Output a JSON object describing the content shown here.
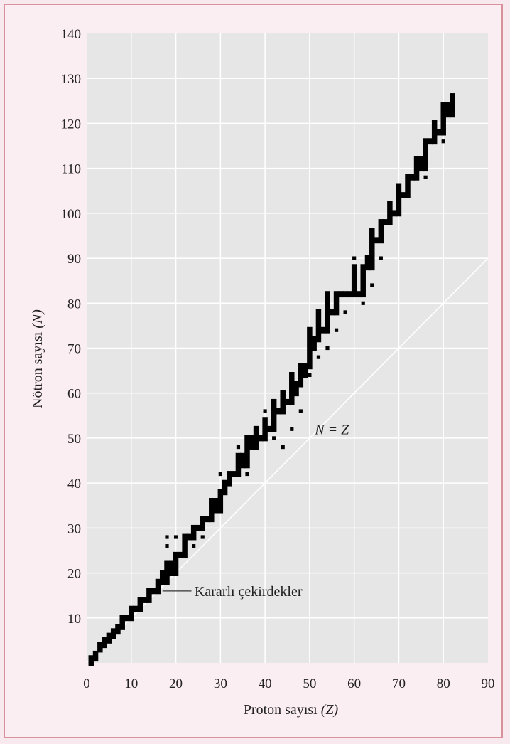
{
  "chart_data": {
    "type": "scatter",
    "xlabel": {
      "text": "Proton sayısı ",
      "symbol": "(Z)"
    },
    "ylabel": {
      "text": "Nötron sayısı ",
      "symbol": "(N)"
    },
    "xlim": [
      0,
      90
    ],
    "ylim": [
      0,
      140
    ],
    "xticks": [
      0,
      10,
      20,
      30,
      40,
      50,
      60,
      70,
      80,
      90
    ],
    "yticks": [
      10,
      20,
      30,
      40,
      50,
      60,
      70,
      80,
      90,
      100,
      110,
      120,
      130,
      140
    ],
    "grid": true,
    "reference_line": {
      "label": "N = Z",
      "x": [
        0,
        90
      ],
      "y": [
        0,
        90
      ]
    },
    "annotation": {
      "text": "Kararlı çekirdekler",
      "points_to": {
        "x": 16,
        "y": 16
      }
    },
    "stable_nuclei_band": [
      [
        1,
        0,
        1
      ],
      [
        2,
        1,
        2
      ],
      [
        3,
        3,
        4
      ],
      [
        4,
        4,
        5
      ],
      [
        5,
        5,
        6
      ],
      [
        6,
        6,
        7
      ],
      [
        7,
        7,
        8
      ],
      [
        8,
        8,
        10
      ],
      [
        9,
        10,
        10
      ],
      [
        10,
        10,
        12
      ],
      [
        11,
        12,
        12
      ],
      [
        12,
        12,
        14
      ],
      [
        13,
        14,
        14
      ],
      [
        14,
        14,
        16
      ],
      [
        15,
        16,
        16
      ],
      [
        16,
        16,
        18
      ],
      [
        17,
        18,
        20
      ],
      [
        18,
        18,
        22
      ],
      [
        19,
        20,
        22
      ],
      [
        20,
        20,
        24
      ],
      [
        21,
        24,
        24
      ],
      [
        22,
        24,
        28
      ],
      [
        23,
        28,
        28
      ],
      [
        24,
        28,
        30
      ],
      [
        25,
        30,
        30
      ],
      [
        26,
        30,
        32
      ],
      [
        27,
        32,
        32
      ],
      [
        28,
        32,
        36
      ],
      [
        29,
        34,
        36
      ],
      [
        30,
        34,
        38
      ],
      [
        31,
        38,
        40
      ],
      [
        32,
        40,
        42
      ],
      [
        33,
        42,
        42
      ],
      [
        34,
        42,
        46
      ],
      [
        35,
        44,
        46
      ],
      [
        36,
        44,
        50
      ],
      [
        37,
        48,
        50
      ],
      [
        38,
        48,
        52
      ],
      [
        39,
        50,
        50
      ],
      [
        40,
        50,
        54
      ],
      [
        41,
        52,
        52
      ],
      [
        42,
        52,
        58
      ],
      [
        43,
        56,
        56
      ],
      [
        44,
        56,
        60
      ],
      [
        45,
        58,
        58
      ],
      [
        46,
        58,
        64
      ],
      [
        47,
        60,
        62
      ],
      [
        48,
        62,
        66
      ],
      [
        49,
        64,
        66
      ],
      [
        50,
        66,
        74
      ],
      [
        51,
        70,
        72
      ],
      [
        52,
        72,
        78
      ],
      [
        53,
        74,
        74
      ],
      [
        54,
        74,
        82
      ],
      [
        55,
        78,
        78
      ],
      [
        56,
        78,
        82
      ],
      [
        57,
        82,
        82
      ],
      [
        58,
        82,
        82
      ],
      [
        59,
        82,
        82
      ],
      [
        60,
        82,
        88
      ],
      [
        61,
        82,
        82
      ],
      [
        62,
        82,
        88
      ],
      [
        63,
        88,
        90
      ],
      [
        64,
        88,
        96
      ],
      [
        65,
        94,
        94
      ],
      [
        66,
        94,
        98
      ],
      [
        67,
        98,
        98
      ],
      [
        68,
        98,
        102
      ],
      [
        69,
        100,
        100
      ],
      [
        70,
        100,
        106
      ],
      [
        71,
        104,
        104
      ],
      [
        72,
        104,
        108
      ],
      [
        73,
        108,
        108
      ],
      [
        74,
        108,
        112
      ],
      [
        75,
        110,
        112
      ],
      [
        76,
        110,
        116
      ],
      [
        77,
        116,
        116
      ],
      [
        78,
        116,
        120
      ],
      [
        79,
        118,
        118
      ],
      [
        80,
        118,
        124
      ],
      [
        81,
        122,
        124
      ],
      [
        82,
        122,
        126
      ]
    ],
    "unstable_points": [
      [
        18,
        26
      ],
      [
        18,
        28
      ],
      [
        20,
        28
      ],
      [
        22,
        26
      ],
      [
        24,
        26
      ],
      [
        26,
        28
      ],
      [
        30,
        42
      ],
      [
        32,
        40
      ],
      [
        34,
        46
      ],
      [
        34,
        48
      ],
      [
        36,
        48
      ],
      [
        38,
        52
      ],
      [
        36,
        42
      ],
      [
        40,
        54
      ],
      [
        40,
        56
      ],
      [
        42,
        56
      ],
      [
        42,
        50
      ],
      [
        44,
        58
      ],
      [
        44,
        48
      ],
      [
        46,
        60
      ],
      [
        46,
        52
      ],
      [
        48,
        62
      ],
      [
        48,
        56
      ],
      [
        50,
        72
      ],
      [
        50,
        64
      ],
      [
        52,
        76
      ],
      [
        52,
        68
      ],
      [
        54,
        80
      ],
      [
        54,
        70
      ],
      [
        56,
        74
      ],
      [
        58,
        78
      ],
      [
        60,
        86
      ],
      [
        60,
        90
      ],
      [
        62,
        80
      ],
      [
        64,
        92
      ],
      [
        64,
        84
      ],
      [
        66,
        96
      ],
      [
        66,
        90
      ],
      [
        68,
        100
      ],
      [
        70,
        104
      ],
      [
        72,
        106
      ],
      [
        74,
        110
      ],
      [
        76,
        108
      ],
      [
        78,
        120
      ],
      [
        80,
        116
      ]
    ]
  }
}
